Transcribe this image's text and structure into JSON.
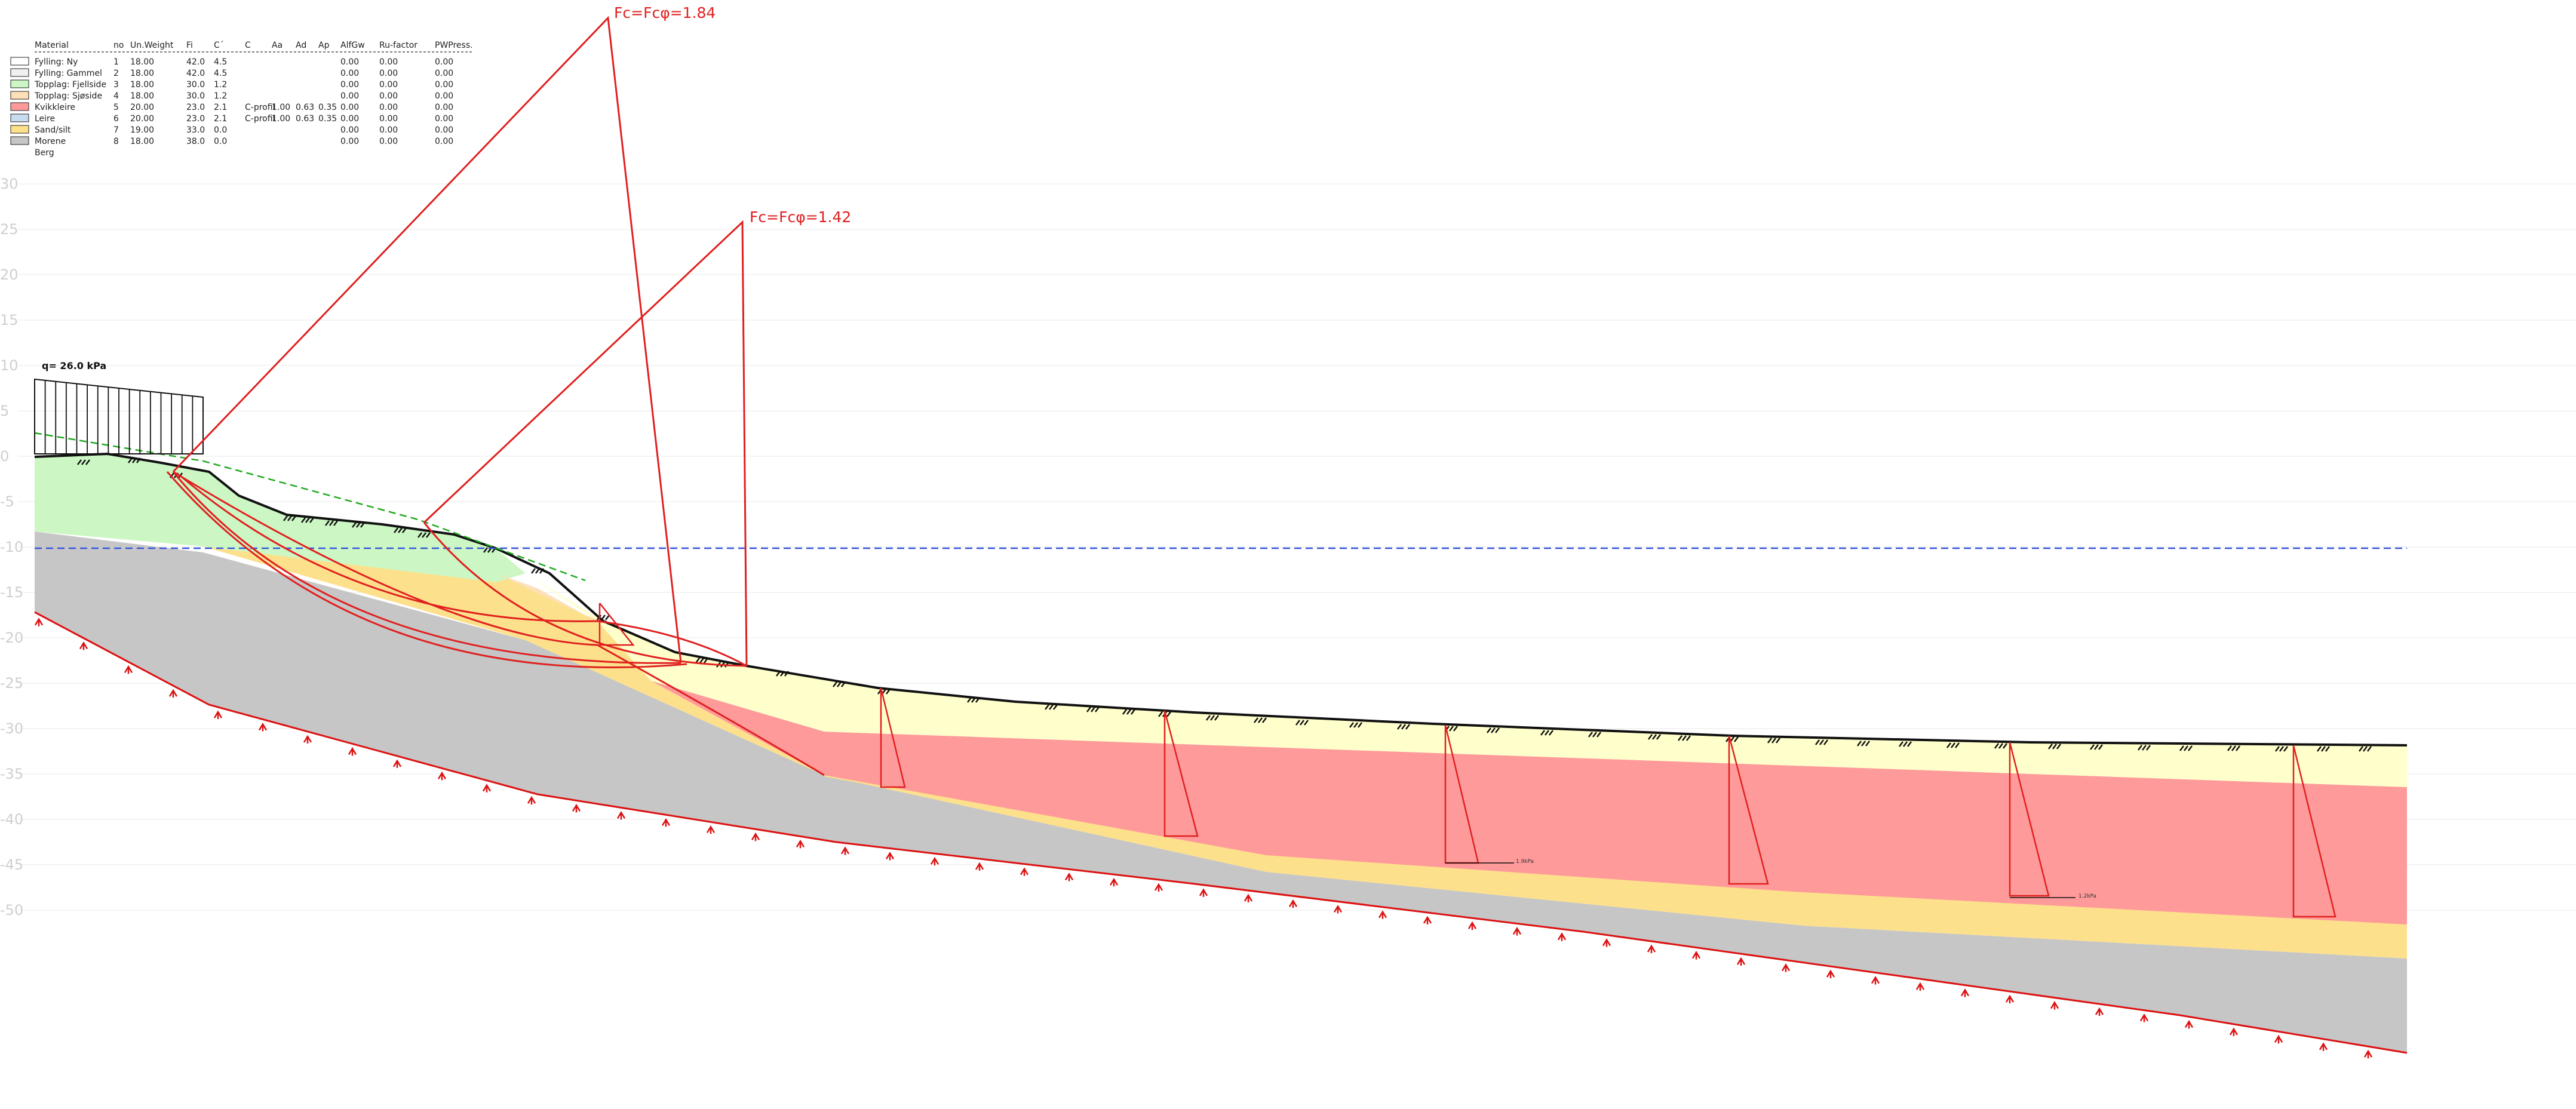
{
  "legend": {
    "headers": [
      "Material",
      "no",
      "Un.Weight",
      "Fi",
      "C´",
      "C",
      "Aa",
      "Ad",
      "Ap",
      "AlfGw",
      "Ru-factor",
      "PWPress."
    ],
    "rows": [
      {
        "name": "Fylling: Ny",
        "no": "1",
        "unit_weight": "18.00",
        "fi": "42.0",
        "c_eff": "4.5",
        "c": "",
        "aa": "",
        "ad": "",
        "ap": "",
        "alfgw": "0.00",
        "ru": "0.00",
        "pw": "0.00",
        "color": "#ffffff"
      },
      {
        "name": "Fylling: Gammel",
        "no": "2",
        "unit_weight": "18.00",
        "fi": "42.0",
        "c_eff": "4.5",
        "c": "",
        "aa": "",
        "ad": "",
        "ap": "",
        "alfgw": "0.00",
        "ru": "0.00",
        "pw": "0.00",
        "color": "#f0f0f0"
      },
      {
        "name": "Topplag: Fjellside",
        "no": "3",
        "unit_weight": "18.00",
        "fi": "30.0",
        "c_eff": "1.2",
        "c": "",
        "aa": "",
        "ad": "",
        "ap": "",
        "alfgw": "0.00",
        "ru": "0.00",
        "pw": "0.00",
        "color": "#ccf7c4"
      },
      {
        "name": "Topplag: Sjøside",
        "no": "4",
        "unit_weight": "18.00",
        "fi": "30.0",
        "c_eff": "1.2",
        "c": "",
        "aa": "",
        "ad": "",
        "ap": "",
        "alfgw": "0.00",
        "ru": "0.00",
        "pw": "0.00",
        "color": "#fde0b8"
      },
      {
        "name": "Kvikkleire",
        "no": "5",
        "unit_weight": "20.00",
        "fi": "23.0",
        "c_eff": "2.1",
        "c": "C-profil",
        "aa": "1.00",
        "ad": "0.63",
        "ap": "0.35",
        "alfgw": "0.00",
        "ru": "0.00",
        "pw": "0.00",
        "color": "#ff9a9a"
      },
      {
        "name": "Leire",
        "no": "6",
        "unit_weight": "20.00",
        "fi": "23.0",
        "c_eff": "2.1",
        "c": "C-profil",
        "aa": "1.00",
        "ad": "0.63",
        "ap": "0.35",
        "alfgw": "0.00",
        "ru": "0.00",
        "pw": "0.00",
        "color": "#c8dcf0"
      },
      {
        "name": "Sand/silt",
        "no": "7",
        "unit_weight": "19.00",
        "fi": "33.0",
        "c_eff": "0.0",
        "c": "",
        "aa": "",
        "ad": "",
        "ap": "",
        "alfgw": "0.00",
        "ru": "0.00",
        "pw": "0.00",
        "color": "#fde08c"
      },
      {
        "name": "Morene",
        "no": "8",
        "unit_weight": "18.00",
        "fi": "38.0",
        "c_eff": "0.0",
        "c": "",
        "aa": "",
        "ad": "",
        "ap": "",
        "alfgw": "0.00",
        "ru": "0.00",
        "pw": "0.00",
        "color": "#c6c6c6"
      },
      {
        "name": "Berg",
        "no": "",
        "unit_weight": "",
        "fi": "",
        "c_eff": "",
        "c": "",
        "aa": "",
        "ad": "",
        "ap": "",
        "alfgw": "",
        "ru": "",
        "pw": "",
        "color": ""
      }
    ]
  },
  "y_axis_ticks": [
    "30",
    "25",
    "20",
    "15",
    "10",
    "5",
    "0",
    "-5",
    "-10",
    "-15",
    "-20",
    "-25",
    "-30",
    "-35",
    "-40",
    "-45",
    "-50"
  ],
  "load": {
    "label": "q=  26.0  kPa"
  },
  "safety_factors": [
    {
      "label": "Fc=Fcφ=1.84"
    },
    {
      "label": "Fc=Fcφ=1.42"
    }
  ],
  "profile_annotations": [
    "1.9kPa",
    "1.2kPa"
  ],
  "colors": {
    "slip_surface": "#e02020",
    "water_table": "#3355dd",
    "fill_line": "#22aa22",
    "bedrock_line": "#dd1111",
    "quick_clay": "#ff9a9a",
    "dry_crust": "#ffffcc",
    "sand_silt": "#fde08c",
    "moraine": "#c6c6c6",
    "topsoil_hillside": "#ccf7c4",
    "topsoil_seaside": "#fde0b8"
  }
}
